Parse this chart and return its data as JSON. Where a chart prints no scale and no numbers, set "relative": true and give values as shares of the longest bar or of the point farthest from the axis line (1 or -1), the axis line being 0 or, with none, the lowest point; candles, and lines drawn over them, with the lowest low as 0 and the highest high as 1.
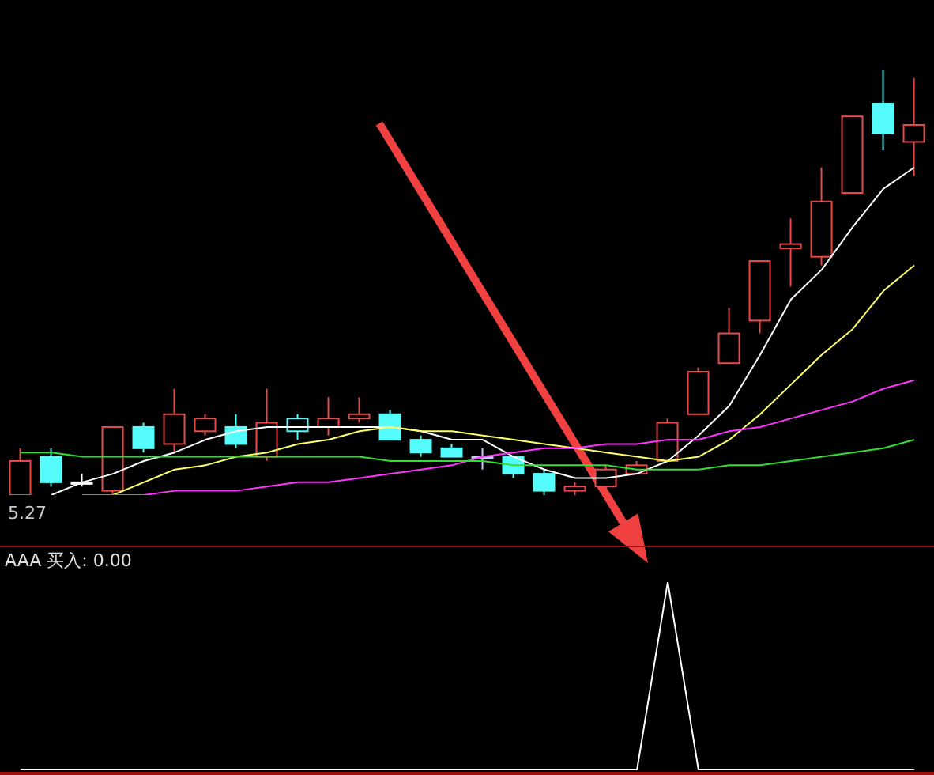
{
  "chart_data": [
    {
      "type": "candlestick",
      "relative": true,
      "categories": [
        null,
        null,
        null,
        null,
        null,
        null,
        null,
        null,
        null,
        null,
        null,
        null,
        null,
        null,
        null,
        null,
        null,
        null,
        null,
        null,
        null,
        null,
        null,
        null,
        null,
        null,
        null,
        null,
        null,
        null
      ],
      "ohlc": [
        [
          0.0,
          0.11,
          0.0,
          0.08
        ],
        [
          0.09,
          0.11,
          0.02,
          0.03
        ],
        [
          0.03,
          0.05,
          0.02,
          0.03
        ],
        [
          0.01,
          0.16,
          0.0,
          0.16
        ],
        [
          0.16,
          0.17,
          0.1,
          0.11
        ],
        [
          0.12,
          0.25,
          0.1,
          0.19
        ],
        [
          0.15,
          0.19,
          0.14,
          0.18
        ],
        [
          0.16,
          0.19,
          0.11,
          0.12
        ],
        [
          0.09,
          0.25,
          0.08,
          0.17
        ],
        [
          0.15,
          0.19,
          0.13,
          0.18
        ],
        [
          0.16,
          0.23,
          0.14,
          0.18
        ],
        [
          0.18,
          0.23,
          0.17,
          0.19
        ],
        [
          0.19,
          0.2,
          0.13,
          0.13
        ],
        [
          0.13,
          0.14,
          0.09,
          0.1
        ],
        [
          0.11,
          0.12,
          0.09,
          0.09
        ],
        [
          0.09,
          0.11,
          0.06,
          0.09
        ],
        [
          0.09,
          0.09,
          0.04,
          0.05
        ],
        [
          0.05,
          0.06,
          0.0,
          0.01
        ],
        [
          0.01,
          0.03,
          0.0,
          0.02
        ],
        [
          0.02,
          0.07,
          0.01,
          0.06
        ],
        [
          0.05,
          0.08,
          0.05,
          0.07
        ],
        [
          0.08,
          0.18,
          0.08,
          0.17
        ],
        [
          0.19,
          0.3,
          0.19,
          0.29
        ],
        [
          0.31,
          0.44,
          0.31,
          0.38
        ],
        [
          0.41,
          0.55,
          0.38,
          0.55
        ],
        [
          0.58,
          0.65,
          0.49,
          0.59
        ],
        [
          0.56,
          0.77,
          0.54,
          0.69
        ],
        [
          0.71,
          0.89,
          0.71,
          0.89
        ],
        [
          0.92,
          1.0,
          0.81,
          0.85
        ],
        [
          0.83,
          0.98,
          0.75,
          0.87
        ]
      ],
      "colors": [
        "#e84a4a",
        "#54fcfc",
        "#ffffff",
        "#e84a4a",
        "#54fcfc",
        "#e84a4a",
        "#e84a4a",
        "#54fcfc",
        "#e84a4a",
        "#54fcfc",
        "#e84a4a",
        "#e84a4a",
        "#54fcfc",
        "#54fcfc",
        "#54fcfc",
        "#c8c8ff",
        "#54fcfc",
        "#54fcfc",
        "#e84a4a",
        "#e84a4a",
        "#e84a4a",
        "#e84a4a",
        "#e84a4a",
        "#e84a4a",
        "#e84a4a",
        "#e84a4a",
        "#e84a4a",
        "#e84a4a",
        "#54fcfc",
        "#e84a4a"
      ],
      "series": [
        {
          "type": "line",
          "color": "#ffffff",
          "values": [
            null,
            0.0,
            0.03,
            0.05,
            0.08,
            0.1,
            0.13,
            0.15,
            0.16,
            0.16,
            0.16,
            0.16,
            0.16,
            0.15,
            0.13,
            0.13,
            0.09,
            0.06,
            0.04,
            0.04,
            0.05,
            0.08,
            0.14,
            0.21,
            0.33,
            0.46,
            0.53,
            0.63,
            0.72,
            0.77
          ]
        },
        {
          "type": "line",
          "color": "#ffff66",
          "values": [
            null,
            null,
            null,
            0.0,
            0.03,
            0.06,
            0.07,
            0.09,
            0.1,
            0.12,
            0.13,
            0.15,
            0.16,
            0.15,
            0.15,
            0.14,
            0.13,
            0.12,
            0.11,
            0.1,
            0.09,
            0.08,
            0.09,
            0.13,
            0.19,
            0.26,
            0.33,
            0.39,
            0.48,
            0.54
          ]
        },
        {
          "type": "line",
          "color": "#ff33ff",
          "values": [
            null,
            null,
            0.0,
            0.0,
            0.0,
            0.01,
            0.01,
            0.01,
            0.02,
            0.03,
            0.03,
            0.04,
            0.05,
            0.06,
            0.07,
            0.09,
            0.1,
            0.11,
            0.11,
            0.12,
            0.12,
            0.13,
            0.13,
            0.15,
            0.16,
            0.18,
            0.2,
            0.22,
            0.25,
            0.27
          ]
        },
        {
          "type": "line",
          "color": "#33dd33",
          "values": [
            0.1,
            0.1,
            0.09,
            0.09,
            0.09,
            0.09,
            0.09,
            0.09,
            0.09,
            0.09,
            0.09,
            0.09,
            0.08,
            0.08,
            0.08,
            0.08,
            0.07,
            0.07,
            0.07,
            0.07,
            0.06,
            0.06,
            0.06,
            0.07,
            0.07,
            0.08,
            0.09,
            0.1,
            0.11,
            0.13
          ]
        }
      ],
      "annotations": [
        "5.27"
      ]
    },
    {
      "type": "line",
      "relative": true,
      "title": "AAA 买入: 0.00",
      "categories": [
        null,
        null,
        null,
        null,
        null,
        null,
        null,
        null,
        null,
        null,
        null,
        null,
        null,
        null,
        null,
        null,
        null,
        null,
        null,
        null,
        null,
        null,
        null,
        null,
        null,
        null,
        null,
        null,
        null,
        null
      ],
      "series": [
        {
          "color": "#ffffff",
          "values": [
            0,
            0,
            0,
            0,
            0,
            0,
            0,
            0,
            0,
            0,
            0,
            0,
            0,
            0,
            0,
            0,
            0,
            0,
            0,
            0,
            0,
            1,
            0,
            0,
            0,
            0,
            0,
            0,
            0,
            0
          ]
        }
      ]
    }
  ]
}
